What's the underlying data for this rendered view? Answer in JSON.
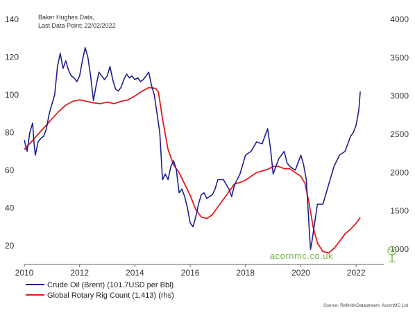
{
  "chart_data": {
    "type": "line",
    "annotation": [
      "Baker Hughes Data,",
      "Last Data Point; 22/02/2022"
    ],
    "x_ticks": [
      "2010",
      "2012",
      "2014",
      "2016",
      "2018",
      "2020",
      "2022"
    ],
    "xlim": [
      2010.0,
      2023.0
    ],
    "y_left": {
      "ticks": [
        "20",
        "40",
        "60",
        "80",
        "100",
        "120",
        "140"
      ],
      "ylim": [
        10,
        140
      ]
    },
    "y_right": {
      "ticks": [
        "1000",
        "1500",
        "2000",
        "2500",
        "3000",
        "3500",
        "4000"
      ],
      "ylim": [
        800,
        4000
      ]
    },
    "grid": false,
    "legend_position": "bottom-left",
    "series": [
      {
        "name": "Crude Oil (Brent) (101.7USD per Bbl)",
        "axis": "left",
        "color": "#1f1f8f",
        "x": [
          2010.0,
          2010.1,
          2010.2,
          2010.3,
          2010.35,
          2010.4,
          2010.5,
          2010.6,
          2010.7,
          2010.8,
          2010.9,
          2011.0,
          2011.1,
          2011.2,
          2011.3,
          2011.4,
          2011.5,
          2011.6,
          2011.7,
          2011.8,
          2011.9,
          2012.0,
          2012.1,
          2012.2,
          2012.3,
          2012.4,
          2012.5,
          2012.6,
          2012.7,
          2012.8,
          2012.9,
          2013.0,
          2013.1,
          2013.2,
          2013.3,
          2013.4,
          2013.5,
          2013.6,
          2013.7,
          2013.8,
          2013.9,
          2014.0,
          2014.1,
          2014.2,
          2014.3,
          2014.4,
          2014.5,
          2014.6,
          2014.7,
          2014.8,
          2014.9,
          2015.0,
          2015.1,
          2015.2,
          2015.3,
          2015.4,
          2015.5,
          2015.6,
          2015.7,
          2015.8,
          2015.9,
          2016.0,
          2016.1,
          2016.2,
          2016.3,
          2016.4,
          2016.5,
          2016.6,
          2016.7,
          2016.8,
          2016.9,
          2017.0,
          2017.2,
          2017.4,
          2017.5,
          2017.6,
          2017.8,
          2018.0,
          2018.2,
          2018.4,
          2018.6,
          2018.8,
          2018.9,
          2019.0,
          2019.2,
          2019.4,
          2019.5,
          2019.6,
          2019.8,
          2020.0,
          2020.1,
          2020.2,
          2020.3,
          2020.35,
          2020.4,
          2020.5,
          2020.6,
          2020.8,
          2021.0,
          2021.2,
          2021.4,
          2021.6,
          2021.8,
          2021.9,
          2022.0,
          2022.1,
          2022.15
        ],
        "y": [
          76,
          70,
          80,
          85,
          75,
          68,
          75,
          77,
          78,
          82,
          90,
          95,
          100,
          115,
          122,
          114,
          118,
          113,
          110,
          109,
          107,
          110,
          118,
          125,
          120,
          110,
          97,
          105,
          112,
          110,
          108,
          110,
          115,
          108,
          103,
          102,
          104,
          108,
          111,
          109,
          110,
          108,
          109,
          107,
          108,
          110,
          112,
          105,
          100,
          90,
          80,
          55,
          58,
          55,
          62,
          65,
          60,
          48,
          50,
          46,
          40,
          32,
          30,
          35,
          42,
          47,
          48,
          45,
          46,
          47,
          50,
          55,
          55,
          50,
          46,
          52,
          58,
          68,
          70,
          75,
          74,
          82,
          72,
          58,
          66,
          70,
          64,
          62,
          60,
          68,
          63,
          55,
          30,
          18,
          22,
          32,
          42,
          42,
          52,
          62,
          68,
          70,
          78,
          80,
          84,
          92,
          101.7
        ]
      },
      {
        "name": "Global Rotary Rig Count (1,413) (rhs)",
        "axis": "right",
        "color": "#e41a1c",
        "x": [
          2010.0,
          2010.25,
          2010.5,
          2010.75,
          2011.0,
          2011.25,
          2011.5,
          2011.75,
          2012.0,
          2012.25,
          2012.5,
          2012.75,
          2013.0,
          2013.25,
          2013.5,
          2013.75,
          2014.0,
          2014.25,
          2014.5,
          2014.75,
          2014.85,
          2015.0,
          2015.2,
          2015.4,
          2015.6,
          2015.8,
          2016.0,
          2016.2,
          2016.4,
          2016.6,
          2016.8,
          2017.0,
          2017.2,
          2017.4,
          2017.6,
          2017.8,
          2018.0,
          2018.2,
          2018.4,
          2018.6,
          2018.8,
          2019.0,
          2019.2,
          2019.4,
          2019.6,
          2019.8,
          2020.0,
          2020.15,
          2020.3,
          2020.45,
          2020.6,
          2020.8,
          2021.0,
          2021.2,
          2021.4,
          2021.6,
          2021.8,
          2022.0,
          2022.15
        ],
        "y": [
          2300,
          2400,
          2500,
          2600,
          2700,
          2800,
          2880,
          2930,
          2950,
          2930,
          2910,
          2900,
          2920,
          2900,
          2930,
          2950,
          3000,
          3060,
          3110,
          3100,
          3050,
          2700,
          2300,
          2100,
          2000,
          1850,
          1700,
          1520,
          1420,
          1400,
          1450,
          1550,
          1650,
          1750,
          1850,
          1870,
          1900,
          1950,
          2000,
          2020,
          2040,
          2080,
          2080,
          2050,
          2050,
          2000,
          1950,
          1860,
          1600,
          1280,
          1080,
          970,
          950,
          1010,
          1100,
          1200,
          1260,
          1340,
          1413
        ]
      }
    ]
  },
  "watermark": "acornmc.co.uk",
  "source": "Source: RefinitivDatastream, AcornMC Ltd"
}
